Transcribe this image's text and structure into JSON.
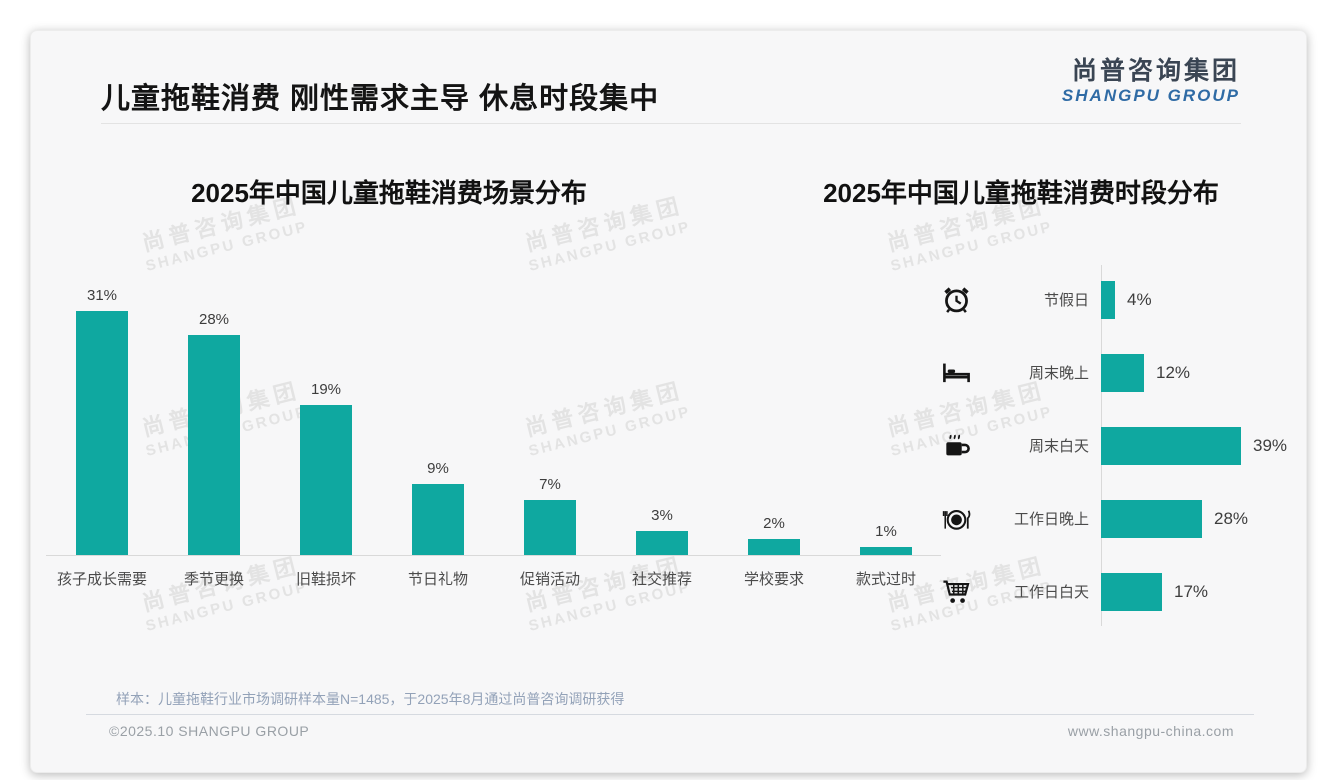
{
  "page": {
    "title": "儿童拖鞋消费 刚性需求主导 休息时段集中",
    "logo": {
      "cn": "尚普咨询集团",
      "en": "SHANGPU GROUP"
    },
    "watermark": {
      "cn": "尚普咨询集团",
      "en": "SHANGPU GROUP"
    },
    "footnote": "样本：儿童拖鞋行业市场调研样本量N=1485，于2025年8月通过尚普咨询调研获得",
    "copyright": "©2025.10 SHANGPU GROUP",
    "website": "www.shangpu-china.com"
  },
  "colors": {
    "bar_teal": "#0fa8a0",
    "logo_dark": "#3a4553",
    "logo_blue": "#2f6ba5",
    "footnote_blue_gray": "#93a2b8",
    "slide_background": "#f7f7f8"
  },
  "chart_data": [
    {
      "type": "bar",
      "title": "2025年中国儿童拖鞋消费场景分布",
      "categories": [
        "孩子成长需要",
        "季节更换",
        "旧鞋损坏",
        "节日礼物",
        "促销活动",
        "社交推荐",
        "学校要求",
        "款式过时"
      ],
      "values": [
        31,
        28,
        19,
        9,
        7,
        3,
        2,
        1
      ],
      "value_labels": [
        "31%",
        "28%",
        "19%",
        "9%",
        "7%",
        "3%",
        "2%",
        "1%"
      ],
      "unit": "%",
      "ylim": [
        0,
        31
      ],
      "grid": false,
      "legend": "none",
      "bar_color": "#0fa8a0"
    },
    {
      "type": "bar",
      "orientation": "horizontal",
      "title": "2025年中国儿童拖鞋消费时段分布",
      "categories": [
        "节假日",
        "周末晚上",
        "周末白天",
        "工作日晚上",
        "工作日白天"
      ],
      "values": [
        4,
        12,
        39,
        28,
        17
      ],
      "value_labels": [
        "4%",
        "12%",
        "39%",
        "28%",
        "17%"
      ],
      "icons": [
        "alarm-clock-icon",
        "bed-icon",
        "coffee-icon",
        "dining-icon",
        "shopping-cart-icon"
      ],
      "unit": "%",
      "xlim": [
        0,
        39
      ],
      "grid": false,
      "legend": "none",
      "bar_color": "#0fa8a0"
    }
  ]
}
